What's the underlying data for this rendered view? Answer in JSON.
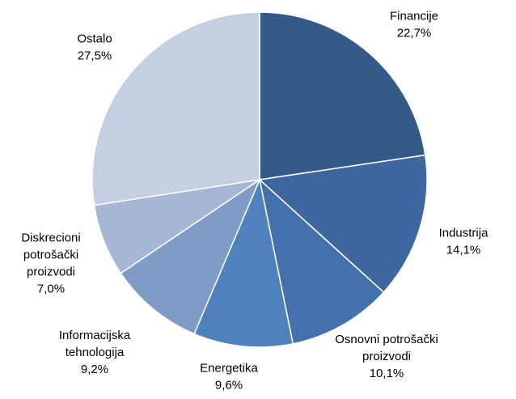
{
  "chart_data": {
    "type": "pie",
    "categories": [
      "Financije",
      "Industrija",
      "Osnovni potrošački proizvodi",
      "Energetika",
      "Informacijska tehnologija",
      "Diskrecioni potrošački proizvodi",
      "Ostalo"
    ],
    "values": [
      22.7,
      14.1,
      10.1,
      9.6,
      9.2,
      7.0,
      27.5
    ],
    "value_labels": [
      "22,7%",
      "14,1%",
      "10,1%",
      "9,6%",
      "9,2%",
      "7,0%",
      "27,5%"
    ],
    "colors": [
      "#355a87",
      "#3e67a0",
      "#4471ad",
      "#4f81bd",
      "#7f9cc9",
      "#a5b6d7",
      "#c5cfe2"
    ]
  }
}
